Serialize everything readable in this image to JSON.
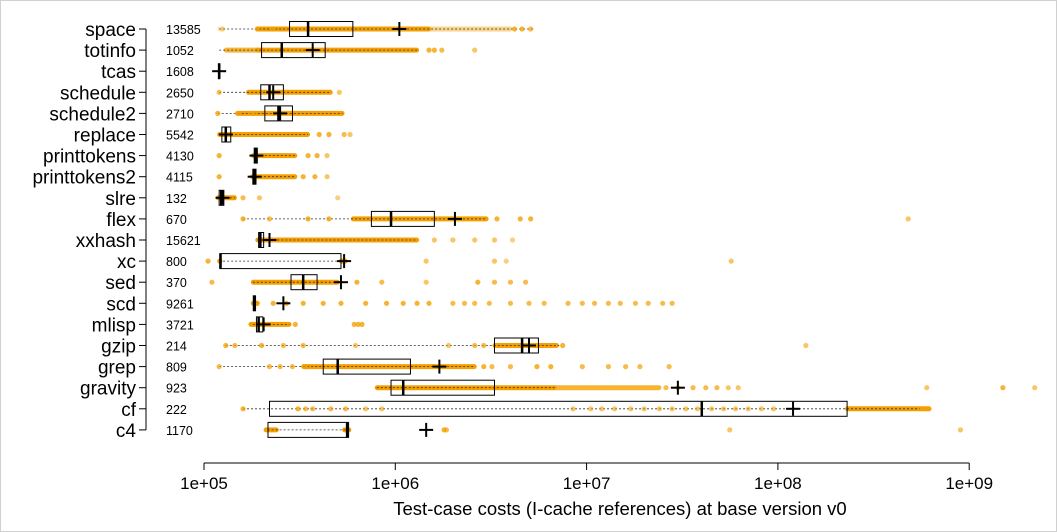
{
  "chart_data": {
    "type": "boxplot",
    "orientation": "horizontal",
    "title": "",
    "xlabel": "Test-case costs (I-cache references) at base version v0",
    "ylabel": "",
    "x_scale": "log",
    "xlim": [
      100000,
      2500000000
    ],
    "x_ticks": [
      100000,
      1000000,
      10000000,
      100000000,
      1000000000
    ],
    "x_tick_labels": [
      "1e+05",
      "1e+06",
      "1e+07",
      "1e+08",
      "1e+09"
    ],
    "grid": false,
    "legend": "none",
    "colors": {
      "points": "#f5a000",
      "box": "#000000",
      "mean_marker": "#000000"
    },
    "annotation": "number of test cases per program printed left of each row",
    "mean_marker_symbol": "+",
    "series": [
      {
        "name": "space",
        "n": 13585,
        "whisker_low": 120000,
        "q1": 280000,
        "median": 350000,
        "q3": 600000,
        "whisker_high": 5300000,
        "mean": 1050000,
        "points": [
          [
            125000,
            0.4
          ],
          [
            190000,
            0.7
          ],
          [
            230000,
            0.8
          ],
          [
            4200000,
            0.8
          ],
          [
            4600000,
            0.8
          ],
          [
            5100000,
            0.7
          ]
        ],
        "bands": [
          [
            120000,
            125000,
            0.25
          ],
          [
            190000,
            1500000,
            1
          ],
          [
            1500000,
            4000000,
            0.45
          ]
        ]
      },
      {
        "name": "totinfo",
        "n": 1052,
        "whisker_low": 120000,
        "q1": 200000,
        "median": 255000,
        "q3": 430000,
        "whisker_high": 1300000,
        "mean": 370000,
        "points": [
          [
            1500000,
            0.8
          ],
          [
            1600000,
            0.8
          ],
          [
            1750000,
            0.7
          ],
          [
            2600000,
            0.6
          ]
        ],
        "bands": [
          [
            130000,
            190000,
            0.8
          ],
          [
            190000,
            1300000,
            1
          ]
        ]
      },
      {
        "name": "tcas",
        "n": 1608,
        "whisker_low": 118000,
        "q1": 119000,
        "median": 120000,
        "q3": 121000,
        "whisker_high": 123000,
        "mean": 120000,
        "points": [],
        "bands": []
      },
      {
        "name": "schedule",
        "n": 2650,
        "whisker_low": 120000,
        "q1": 198000,
        "median": 220000,
        "q3": 260000,
        "whisker_high": 460000,
        "mean": 230000,
        "points": [
          [
            120000,
            0.7
          ],
          [
            510000,
            0.6
          ]
        ],
        "bands": [
          [
            170000,
            460000,
            1
          ]
        ]
      },
      {
        "name": "schedule2",
        "n": 2710,
        "whisker_low": 118000,
        "q1": 208000,
        "median": 245000,
        "q3": 290000,
        "whisker_high": 530000,
        "mean": 250000,
        "points": [
          [
            118000,
            0.8
          ],
          [
            150000,
            0.8
          ],
          [
            180000,
            0.8
          ]
        ],
        "bands": [
          [
            150000,
            530000,
            1
          ]
        ]
      },
      {
        "name": "replace",
        "n": 5542,
        "whisker_low": 120000,
        "q1": 124000,
        "median": 130000,
        "q3": 138000,
        "whisker_high": 350000,
        "mean": 130000,
        "points": [
          [
            400000,
            0.8
          ],
          [
            450000,
            0.8
          ],
          [
            540000,
            0.7
          ],
          [
            580000,
            0.6
          ]
        ],
        "bands": [
          [
            120000,
            350000,
            1
          ]
        ]
      },
      {
        "name": "printtokens",
        "n": 4130,
        "whisker_low": 180000,
        "q1": 183000,
        "median": 186000,
        "q3": 190000,
        "whisker_high": 300000,
        "mean": 188000,
        "points": [
          [
            120000,
            0.8
          ],
          [
            350000,
            0.8
          ],
          [
            390000,
            0.8
          ],
          [
            440000,
            0.6
          ]
        ],
        "bands": [
          [
            180000,
            300000,
            1
          ]
        ]
      },
      {
        "name": "printtokens2",
        "n": 4115,
        "whisker_low": 178000,
        "q1": 180000,
        "median": 183000,
        "q3": 187000,
        "whisker_high": 300000,
        "mean": 184000,
        "points": [
          [
            120000,
            0.8
          ],
          [
            330000,
            0.8
          ],
          [
            380000,
            0.8
          ],
          [
            440000,
            0.6
          ]
        ],
        "bands": [
          [
            178000,
            300000,
            1
          ]
        ]
      },
      {
        "name": "slre",
        "n": 132,
        "whisker_low": 118000,
        "q1": 120000,
        "median": 123000,
        "q3": 127000,
        "whisker_high": 145000,
        "mean": 125000,
        "points": [
          [
            160000,
            0.7
          ],
          [
            195000,
            0.6
          ],
          [
            500000,
            0.5
          ]
        ],
        "bands": [
          [
            118000,
            145000,
            1
          ]
        ]
      },
      {
        "name": "flex",
        "n": 670,
        "whisker_low": 160000,
        "q1": 750000,
        "median": 950000,
        "q3": 1600000,
        "whisker_high": 3000000,
        "mean": 2050000,
        "points": [
          [
            160000,
            0.8
          ],
          [
            220000,
            0.7
          ],
          [
            350000,
            0.8
          ],
          [
            450000,
            0.8
          ],
          [
            3400000,
            0.8
          ],
          [
            4500000,
            0.8
          ],
          [
            5100000,
            0.8
          ],
          [
            480000000,
            0.6
          ]
        ],
        "bands": [
          [
            600000,
            3000000,
            1
          ]
        ]
      },
      {
        "name": "xxhash",
        "n": 15621,
        "whisker_low": 190000,
        "q1": 193000,
        "median": 197000,
        "q3": 205000,
        "whisker_high": 1300000,
        "mean": 220000,
        "points": [
          [
            1600000,
            0.6
          ],
          [
            2000000,
            0.6
          ],
          [
            2600000,
            0.6
          ],
          [
            3300000,
            0.6
          ],
          [
            4100000,
            0.5
          ]
        ],
        "bands": [
          [
            190000,
            1300000,
            1
          ]
        ]
      },
      {
        "name": "xc",
        "n": 800,
        "whisker_low": 120000,
        "q1": 121000,
        "median": 122000,
        "q3": 520000,
        "whisker_high": 550000,
        "mean": 540000,
        "points": [
          [
            105000,
            0.8
          ],
          [
            1450000,
            0.6
          ],
          [
            3300000,
            0.6
          ],
          [
            3800000,
            0.5
          ],
          [
            57000000,
            0.6
          ]
        ],
        "bands": [
          [
            120000,
            122000,
            1
          ],
          [
            520000,
            550000,
            1
          ]
        ]
      },
      {
        "name": "sed",
        "n": 370,
        "whisker_low": 180000,
        "q1": 285000,
        "median": 330000,
        "q3": 390000,
        "whisker_high": 500000,
        "mean": 520000,
        "points": [
          [
            110000,
            0.7
          ],
          [
            630000,
            0.8
          ],
          [
            850000,
            0.7
          ],
          [
            1450000,
            0.6
          ],
          [
            2700000,
            0.8
          ],
          [
            3300000,
            0.7
          ],
          [
            4000000,
            0.7
          ],
          [
            4800000,
            0.7
          ]
        ],
        "bands": [
          [
            180000,
            500000,
            1
          ]
        ]
      },
      {
        "name": "scd",
        "n": 9261,
        "whisker_low": 180000,
        "q1": 181000,
        "median": 183000,
        "q3": 186000,
        "whisker_high": 190000,
        "mean": 260000,
        "points": [
          [
            190000,
            0.8
          ],
          [
            230000,
            0.8
          ],
          [
            270000,
            0.8
          ],
          [
            330000,
            0.8
          ],
          [
            420000,
            0.8
          ],
          [
            520000,
            0.8
          ],
          [
            700000,
            0.8
          ],
          [
            900000,
            0.8
          ],
          [
            1100000,
            0.8
          ],
          [
            1300000,
            0.8
          ],
          [
            1500000,
            0.8
          ],
          [
            2000000,
            0.7
          ],
          [
            2300000,
            0.7
          ],
          [
            2600000,
            0.7
          ],
          [
            3100000,
            0.7
          ],
          [
            4000000,
            0.7
          ],
          [
            5000000,
            0.7
          ],
          [
            6000000,
            0.7
          ],
          [
            8000000,
            0.7
          ],
          [
            9500000,
            0.7
          ],
          [
            11000000,
            0.7
          ],
          [
            13000000,
            0.7
          ],
          [
            15000000,
            0.7
          ],
          [
            18000000,
            0.7
          ],
          [
            21000000,
            0.7
          ],
          [
            25000000,
            0.7
          ],
          [
            28000000,
            0.7
          ]
        ],
        "bands": [
          [
            180000,
            190000,
            1
          ]
        ]
      },
      {
        "name": "mlisp",
        "n": 3721,
        "whisker_low": 180000,
        "q1": 188000,
        "median": 193000,
        "q3": 203000,
        "whisker_high": 280000,
        "mean": 205000,
        "points": [
          [
            300000,
            0.8
          ],
          [
            610000,
            0.8
          ],
          [
            640000,
            0.8
          ],
          [
            670000,
            0.8
          ]
        ],
        "bands": [
          [
            175000,
            280000,
            1
          ]
        ]
      },
      {
        "name": "gzip",
        "n": 214,
        "whisker_low": 130000,
        "q1": 3300000,
        "median": 4600000,
        "q3": 5600000,
        "whisker_high": 7200000,
        "mean": 5000000,
        "points": [
          [
            130000,
            0.8
          ],
          [
            145000,
            0.7
          ],
          [
            200000,
            0.8
          ],
          [
            260000,
            0.7
          ],
          [
            330000,
            0.7
          ],
          [
            620000,
            0.6
          ],
          [
            1900000,
            0.6
          ],
          [
            2600000,
            0.7
          ],
          [
            2900000,
            0.7
          ],
          [
            7500000,
            0.8
          ],
          [
            140000000,
            0.6
          ]
        ],
        "bands": [
          [
            3300000,
            7000000,
            1
          ]
        ]
      },
      {
        "name": "grep",
        "n": 809,
        "whisker_low": 120000,
        "q1": 420000,
        "median": 500000,
        "q3": 1200000,
        "whisker_high": 2600000,
        "mean": 1700000,
        "points": [
          [
            120000,
            0.7
          ],
          [
            220000,
            0.7
          ],
          [
            250000,
            0.7
          ],
          [
            290000,
            0.7
          ],
          [
            340000,
            0.7
          ],
          [
            2900000,
            0.8
          ],
          [
            3200000,
            0.7
          ],
          [
            4000000,
            0.7
          ],
          [
            5500000,
            0.8
          ],
          [
            6500000,
            0.8
          ],
          [
            9500000,
            0.7
          ],
          [
            13000000,
            0.7
          ],
          [
            16000000,
            0.7
          ],
          [
            19000000,
            0.7
          ],
          [
            27000000,
            0.7
          ]
        ],
        "bands": [
          [
            330000,
            2600000,
            1
          ]
        ]
      },
      {
        "name": "gravity",
        "n": 923,
        "whisker_low": 800000,
        "q1": 950000,
        "median": 1100000,
        "q3": 3300000,
        "whisker_high": 6800000,
        "mean": 30000000,
        "points": [
          [
            26000000,
            0.7
          ],
          [
            30000000,
            0.7
          ],
          [
            36000000,
            0.7
          ],
          [
            42000000,
            0.7
          ],
          [
            48000000,
            0.7
          ],
          [
            55000000,
            0.6
          ],
          [
            62000000,
            0.6
          ],
          [
            600000000,
            0.6
          ],
          [
            1500000000,
            0.8
          ],
          [
            2200000000,
            0.6
          ]
        ],
        "bands": [
          [
            800000,
            6800000,
            1
          ],
          [
            6800000,
            24000000,
            0.8
          ]
        ]
      },
      {
        "name": "cf",
        "n": 222,
        "whisker_low": 160000,
        "q1": 220000,
        "median": 40000000,
        "q3": 230000000,
        "whisker_high": 550000000,
        "mean": 120000000,
        "points": [
          [
            160000,
            0.8
          ],
          [
            310000,
            0.8
          ],
          [
            340000,
            0.7
          ],
          [
            370000,
            0.7
          ],
          [
            460000,
            0.7
          ],
          [
            550000,
            0.7
          ],
          [
            700000,
            0.6
          ],
          [
            850000,
            0.6
          ],
          [
            8500000,
            0.6
          ],
          [
            10500000,
            0.6
          ],
          [
            12000000,
            0.6
          ],
          [
            14000000,
            0.6
          ],
          [
            17000000,
            0.6
          ],
          [
            20000000,
            0.6
          ],
          [
            24000000,
            0.6
          ],
          [
            28000000,
            0.6
          ],
          [
            33000000,
            0.6
          ],
          [
            38000000,
            0.6
          ],
          [
            45000000,
            0.6
          ],
          [
            52000000,
            0.6
          ],
          [
            60000000,
            0.6
          ],
          [
            70000000,
            0.6
          ],
          [
            82000000,
            0.6
          ],
          [
            95000000,
            0.6
          ]
        ],
        "bands": [
          [
            230000000,
            620000000,
            1
          ]
        ]
      },
      {
        "name": "c4",
        "n": 1170,
        "whisker_low": 215000,
        "q1": 216000,
        "median": 560000,
        "q3": 570000,
        "whisker_high": 575000,
        "mean": 1450000,
        "points": [
          [
            1800000,
            0.8
          ],
          [
            1850000,
            0.7
          ],
          [
            56000000,
            0.6
          ],
          [
            900000000,
            0.6
          ]
        ],
        "bands": [
          [
            210000,
            240000,
            1
          ],
          [
            540000,
            575000,
            1
          ]
        ]
      }
    ]
  }
}
